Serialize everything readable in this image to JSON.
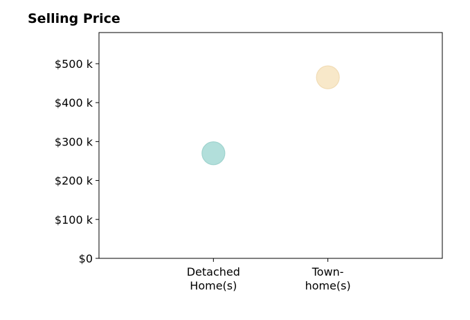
{
  "chart_data": {
    "type": "scatter",
    "title": "Selling Price",
    "xlabel": "",
    "ylabel": "",
    "categories": [
      [
        "Detached",
        "Home(s)"
      ],
      [
        "Town-",
        "home(s)"
      ]
    ],
    "values": [
      270000,
      465000
    ],
    "colors": [
      "#b2dfdb",
      "#f8e8c9"
    ],
    "stroke_colors": [
      "#9fd3ce",
      "#f1dcb5"
    ],
    "ylim": [
      0,
      580000
    ],
    "xlim": [
      -1,
      2
    ],
    "yticks": [
      0,
      100000,
      200000,
      300000,
      400000,
      500000
    ],
    "ytick_labels": [
      "$0",
      "$100 k",
      "$200 k",
      "$300 k",
      "$400 k",
      "$500 k"
    ],
    "grid": false,
    "legend": "none"
  }
}
